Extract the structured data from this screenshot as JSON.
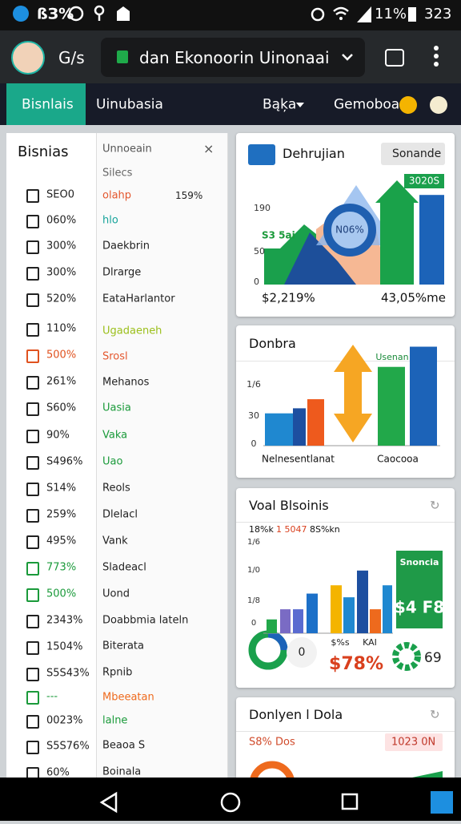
{
  "status_bar": {
    "left": "ßЗ%",
    "battery": "11%",
    "time": "323"
  },
  "browser": {
    "profile": "G/s",
    "url": "dan Ekonoorin Uinonaai"
  },
  "tabs": {
    "active": "Bisnlais",
    "items": [
      "Uinubasia",
      "Bąķa",
      "Gemoboa"
    ]
  },
  "sidebar": {
    "title": "Bisnias",
    "items": [
      {
        "label": "SEO0",
        "color": "#222222"
      },
      {
        "label": "060%",
        "color": "#222222"
      },
      {
        "label": "300%",
        "color": "#222222"
      },
      {
        "label": "300%",
        "color": "#222222"
      },
      {
        "label": "520%",
        "color": "#222222"
      },
      {
        "label": "110%",
        "color": "#222222"
      },
      {
        "label": "500%",
        "color": "#e0521f"
      },
      {
        "label": "261%",
        "color": "#222222"
      },
      {
        "label": "S60%",
        "color": "#222222"
      },
      {
        "label": "90%",
        "color": "#222222"
      },
      {
        "label": "S496%",
        "color": "#222222"
      },
      {
        "label": "S14%",
        "color": "#222222"
      },
      {
        "label": "259%",
        "color": "#222222"
      },
      {
        "label": "495%",
        "color": "#222222"
      },
      {
        "label": "773%",
        "color": "#1a9a3a"
      },
      {
        "label": "500%",
        "color": "#1a9a3a"
      },
      {
        "label": "2343%",
        "color": "#222222"
      },
      {
        "label": "1504%",
        "color": "#222222"
      },
      {
        "label": "S5S43%",
        "color": "#222222"
      },
      {
        "label": "---",
        "color": "#1a9a3a"
      },
      {
        "label": "0023%",
        "color": "#222222"
      },
      {
        "label": "S5S76%",
        "color": "#222222"
      },
      {
        "label": "60%",
        "color": "#222222"
      }
    ]
  },
  "menu": {
    "title": "Unnoeain",
    "subtitle": "Silecs",
    "items": [
      {
        "label": "olahp",
        "color": "#e4572e",
        "value": "159%"
      },
      {
        "label": "hlo",
        "color": "#16a39a"
      },
      {
        "label": "Daekbrin",
        "color": "#222222"
      },
      {
        "label": "Dlrarge",
        "color": "#222222"
      },
      {
        "label": "EataHarlantor",
        "color": "#222222"
      },
      {
        "label": "Ugadaeneh",
        "color": "#9bbf1a"
      },
      {
        "label": "Srosl",
        "color": "#e4572e"
      },
      {
        "label": "Mehanos",
        "color": "#222222"
      },
      {
        "label": "Uasia",
        "color": "#1a9a3a"
      },
      {
        "label": "Vaka",
        "color": "#1a9a3a"
      },
      {
        "label": "Uao",
        "color": "#1a9a3a"
      },
      {
        "label": "Reols",
        "color": "#222222"
      },
      {
        "label": "Dlelacl",
        "color": "#222222"
      },
      {
        "label": "Vank",
        "color": "#222222"
      },
      {
        "label": "Sladeacl",
        "color": "#222222"
      },
      {
        "label": "Uond",
        "color": "#222222"
      },
      {
        "label": "Doabbmia lateln",
        "color": "#222222"
      },
      {
        "label": "Biterata",
        "color": "#222222"
      },
      {
        "label": "Rpnib",
        "color": "#222222"
      },
      {
        "label": "Mbeeatan",
        "color": "#ee6a1d"
      },
      {
        "label": "lalne",
        "color": "#1a9a3a"
      },
      {
        "label": "Beaoa S",
        "color": "#222222"
      },
      {
        "label": "Boinala",
        "color": "#222222"
      }
    ]
  },
  "cards": [
    {
      "title": "Dehrujian",
      "button": "Sonande",
      "badge": "3020S",
      "yticks": [
        "190",
        "50",
        "0"
      ],
      "tag": "S3 5ai",
      "center": "N06%",
      "footer": [
        "$2,219%",
        "43,05%me"
      ],
      "ylim": [
        0,
        100
      ],
      "bars": [
        {
          "value": 100,
          "color": "#1aa24a"
        },
        {
          "value": 86,
          "color": "#1c63b8"
        }
      ]
    },
    {
      "title": "Donbra",
      "badge": "Usenan",
      "yticks": [
        "1/6",
        "30",
        "0"
      ],
      "xlabels": [
        "Nelnesentlanat",
        "Caocooa"
      ],
      "ylim": [
        0,
        100
      ],
      "bars": [
        {
          "value": 32,
          "color": "#1f88d0"
        },
        {
          "value": 37,
          "color": "#1d4fa0"
        },
        {
          "value": 46,
          "color": "#ee5a1d"
        },
        {
          "value": 78,
          "color": "#22a84a"
        },
        {
          "value": 98,
          "color": "#1c63b8"
        }
      ]
    },
    {
      "title": "Voal Blsoinis",
      "subtitle": [
        "18%k",
        "1 5047",
        "8S%kn"
      ],
      "yticks": [
        "1/6",
        "1/0",
        "1/8",
        "0"
      ],
      "ylim": [
        0,
        100
      ],
      "bars": [
        {
          "value": 15,
          "color": "#22a84a"
        },
        {
          "value": 26,
          "color": "#7a6bc4"
        },
        {
          "value": 26,
          "color": "#5a6bd0"
        },
        {
          "value": 43,
          "color": "#1c70c8"
        },
        {
          "value": 52,
          "color": "#f4b400"
        },
        {
          "value": 39,
          "color": "#1f88d0"
        },
        {
          "value": 68,
          "color": "#1d4fa0"
        },
        {
          "value": 26,
          "color": "#ee6a1d"
        },
        {
          "value": 52,
          "color": "#1f88d0"
        }
      ],
      "promo": [
        "Snoncia",
        "$4 F8"
      ],
      "donut": "0",
      "stats": [
        "$%s",
        "KAI",
        "$78%",
        "69"
      ]
    },
    {
      "title": "Donlyen l Dola",
      "stat": "S8% Dos",
      "badge": "1023 0N"
    }
  ]
}
